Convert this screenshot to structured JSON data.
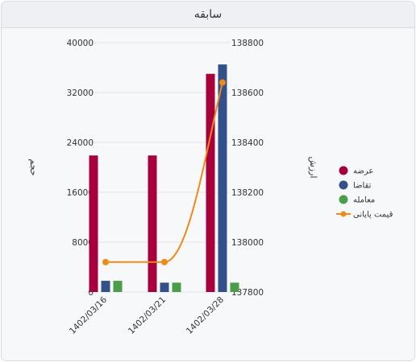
{
  "panel": {
    "title": "سابقه"
  },
  "chart_data": {
    "type": "bar",
    "categories": [
      "1402/03/16",
      "1402/03/21",
      "1402/03/28"
    ],
    "series": [
      {
        "name": "عرضه",
        "type": "bar",
        "axis": "left",
        "color": "#a8003d",
        "values": [
          21900,
          21900,
          35000
        ]
      },
      {
        "name": "تقاضا",
        "type": "bar",
        "axis": "left",
        "color": "#33508a",
        "values": [
          1800,
          1500,
          36500
        ]
      },
      {
        "name": "معامله",
        "type": "bar",
        "axis": "left",
        "color": "#4a9e4a",
        "values": [
          1800,
          1500,
          1500
        ]
      },
      {
        "name": "قیمت پایانی",
        "type": "line",
        "axis": "right",
        "color": "#ef8a17",
        "values": [
          137920,
          137920,
          138640
        ]
      }
    ],
    "y_left": {
      "label": "حجم",
      "min": 0,
      "max": 40000,
      "ticks": [
        0,
        8000,
        16000,
        24000,
        32000,
        40000
      ]
    },
    "y_right": {
      "label": "ارزش",
      "min": 137800,
      "max": 138800,
      "ticks": [
        137800,
        138000,
        138200,
        138400,
        138600,
        138800
      ]
    },
    "legend_position": "right",
    "grid": true
  }
}
